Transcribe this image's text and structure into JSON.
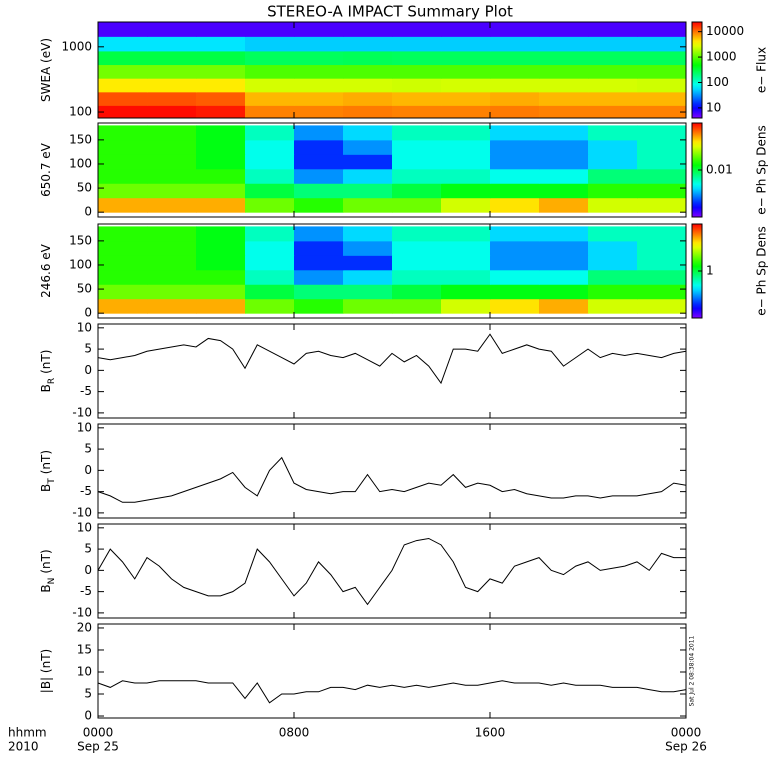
{
  "title": "STEREO-A IMPACT Summary Plot",
  "x_label": [
    "hhmm",
    "2010"
  ],
  "xlim": [
    0,
    24
  ],
  "xticks": [
    {
      "value": 0,
      "label": "0000"
    },
    {
      "value": 8,
      "label": "0800"
    },
    {
      "value": 16,
      "label": "1600"
    },
    {
      "value": 24,
      "label": "0000"
    }
  ],
  "xdates": [
    {
      "value": 0,
      "label": "Sep 25"
    },
    {
      "value": 24,
      "label": "Sep 26"
    }
  ],
  "x": [
    0,
    0.5,
    1,
    1.5,
    2,
    2.5,
    3,
    3.5,
    4,
    4.5,
    5,
    5.5,
    6,
    6.5,
    7,
    7.5,
    8,
    8.5,
    9,
    9.5,
    10,
    10.5,
    11,
    11.5,
    12,
    12.5,
    13,
    13.5,
    14,
    14.5,
    15,
    15.5,
    16,
    16.5,
    17,
    17.5,
    18,
    18.5,
    19,
    19.5,
    20,
    20.5,
    21,
    21.5,
    22,
    22.5,
    23,
    23.5,
    24
  ],
  "timestamp": "Sat Jul  2 08:38:04 2011",
  "chart_data": [
    {
      "type": "heatmap",
      "y_label": "SWEA (eV)",
      "log_y": true,
      "ylim": [
        81,
        2400
      ],
      "yticks": [
        100,
        1000
      ],
      "x": [
        1,
        3,
        5,
        7,
        9,
        11,
        13,
        15,
        17,
        19,
        21,
        23
      ],
      "y": [
        100,
        160,
        260,
        420,
        680,
        1100,
        1900
      ],
      "values": [
        [
          22000,
          22000,
          20000,
          9000,
          9000,
          9500,
          9000,
          9000,
          9500,
          9000,
          9000,
          9000
        ],
        [
          13000,
          13000,
          12000,
          6000,
          6000,
          6500,
          6000,
          6000,
          6500,
          6000,
          6000,
          6000
        ],
        [
          4000,
          4000,
          4000,
          2500,
          2500,
          2500,
          2400,
          2500,
          2500,
          2500,
          2500,
          2400
        ],
        [
          1200,
          1200,
          1200,
          900,
          900,
          900,
          900,
          900,
          900,
          900,
          900,
          900
        ],
        [
          300,
          300,
          300,
          250,
          250,
          260,
          250,
          250,
          250,
          250,
          250,
          250
        ],
        [
          60,
          60,
          60,
          50,
          50,
          50,
          50,
          50,
          50,
          50,
          50,
          50
        ],
        [
          6,
          6,
          6,
          6,
          6,
          6,
          6,
          6,
          6,
          6,
          6,
          6
        ]
      ],
      "colorbar": {
        "label": "e− Flux",
        "log": true,
        "clim": [
          4,
          24000
        ],
        "ticks": [
          10,
          100,
          1000,
          10000
        ]
      }
    },
    {
      "type": "heatmap",
      "y_label": "650.7 eV",
      "log_y": false,
      "ylim": [
        -10,
        185
      ],
      "yticks": [
        0,
        50,
        100,
        150
      ],
      "x": [
        1,
        3,
        5,
        7,
        9,
        11,
        13,
        15,
        17,
        19,
        21,
        23
      ],
      "y": [
        15,
        45,
        75,
        105,
        135,
        165
      ],
      "values": [
        [
          0.05,
          0.05,
          0.05,
          0.02,
          0.015,
          0.02,
          0.02,
          0.03,
          0.04,
          0.05,
          0.03,
          0.03
        ],
        [
          0.02,
          0.02,
          0.02,
          0.01,
          0.008,
          0.008,
          0.01,
          0.012,
          0.012,
          0.012,
          0.015,
          0.015
        ],
        [
          0.015,
          0.015,
          0.015,
          0.006,
          0.003,
          0.004,
          0.006,
          0.006,
          0.005,
          0.005,
          0.008,
          0.008
        ],
        [
          0.015,
          0.015,
          0.012,
          0.005,
          0.002,
          0.002,
          0.005,
          0.005,
          0.003,
          0.003,
          0.004,
          0.006
        ],
        [
          0.015,
          0.015,
          0.012,
          0.005,
          0.002,
          0.003,
          0.005,
          0.005,
          0.003,
          0.003,
          0.004,
          0.006
        ],
        [
          0.015,
          0.015,
          0.012,
          0.006,
          0.003,
          0.004,
          0.006,
          0.006,
          0.004,
          0.004,
          0.006,
          0.006
        ]
      ],
      "colorbar": {
        "label": "e− Ph Sp Dens",
        "log": true,
        "clim": [
          0.001,
          0.1
        ],
        "ticks": [
          0.01
        ]
      }
    },
    {
      "type": "heatmap",
      "y_label": "246.6 eV",
      "log_y": false,
      "ylim": [
        -10,
        185
      ],
      "yticks": [
        0,
        50,
        100,
        150
      ],
      "x": [
        1,
        3,
        5,
        7,
        9,
        11,
        13,
        15,
        17,
        19,
        21,
        23
      ],
      "y": [
        15,
        45,
        75,
        105,
        135,
        165
      ],
      "values": [
        [
          5,
          5,
          5,
          2,
          1.5,
          2,
          2,
          3,
          4,
          5,
          3,
          3
        ],
        [
          2,
          2,
          2,
          1,
          0.8,
          0.8,
          1,
          1.2,
          1.2,
          1.2,
          1.5,
          1.5
        ],
        [
          1.5,
          1.5,
          1.5,
          0.6,
          0.3,
          0.4,
          0.6,
          0.6,
          0.5,
          0.5,
          0.8,
          0.8
        ],
        [
          1.5,
          1.5,
          1.2,
          0.5,
          0.2,
          0.2,
          0.5,
          0.5,
          0.3,
          0.3,
          0.4,
          0.6
        ],
        [
          1.5,
          1.5,
          1.2,
          0.5,
          0.2,
          0.3,
          0.5,
          0.5,
          0.3,
          0.3,
          0.4,
          0.6
        ],
        [
          1.5,
          1.5,
          1.2,
          0.6,
          0.3,
          0.4,
          0.6,
          0.6,
          0.4,
          0.4,
          0.6,
          0.6
        ]
      ],
      "colorbar": {
        "label": "e− Ph Sp Dens",
        "log": true,
        "clim": [
          0.1,
          10
        ],
        "ticks": [
          1
        ]
      }
    },
    {
      "type": "line",
      "y_label": "B",
      "y_label_sub": "R",
      "y_unit": "(nT)",
      "ylim": [
        -11.2,
        10.9
      ],
      "yticks": [
        -10,
        -5,
        0,
        5,
        10
      ],
      "color": "#000000",
      "values": [
        3,
        2.5,
        3,
        3.5,
        4.5,
        5,
        5.5,
        6,
        5.5,
        7.5,
        7,
        5,
        0.5,
        6,
        4.5,
        3,
        1.5,
        4,
        4.5,
        3.5,
        3,
        4,
        2.5,
        1,
        4,
        2,
        3.5,
        1,
        -3,
        5,
        5,
        4.5,
        8.5,
        4,
        5,
        6,
        5,
        4.5,
        1,
        3,
        5,
        3,
        4,
        3.5,
        4,
        3.5,
        3,
        4,
        4.5
      ]
    },
    {
      "type": "line",
      "y_label": "B",
      "y_label_sub": "T",
      "y_unit": "(nT)",
      "ylim": [
        -11.2,
        10.9
      ],
      "yticks": [
        -10,
        -5,
        0,
        5,
        10
      ],
      "color": "#000000",
      "values": [
        -5,
        -6,
        -7.5,
        -7.5,
        -7,
        -6.5,
        -6,
        -5,
        -4,
        -3,
        -2,
        -0.5,
        -4,
        -6,
        0,
        3,
        -3,
        -4.5,
        -5,
        -5.5,
        -5,
        -5,
        -1,
        -5,
        -4.5,
        -5,
        -4,
        -3,
        -3.5,
        -1,
        -4,
        -3,
        -3.5,
        -5,
        -4.5,
        -5.5,
        -6,
        -6.5,
        -6.5,
        -6,
        -6,
        -6.5,
        -6,
        -6,
        -6,
        -5.5,
        -5,
        -3,
        -3.5
      ]
    },
    {
      "type": "line",
      "y_label": "B",
      "y_label_sub": "N",
      "y_unit": "(nT)",
      "ylim": [
        -11.2,
        10.9
      ],
      "yticks": [
        -10,
        -5,
        0,
        5,
        10
      ],
      "color": "#000000",
      "values": [
        0,
        5,
        2,
        -2,
        3,
        1,
        -2,
        -4,
        -5,
        -6,
        -6,
        -5,
        -3,
        5,
        2,
        -2,
        -6,
        -3,
        2,
        -1,
        -5,
        -4,
        -8,
        -4,
        0,
        6,
        7,
        7.5,
        6,
        2,
        -4,
        -5,
        -2,
        -3,
        1,
        2,
        3,
        0,
        -1,
        1,
        2,
        0,
        0.5,
        1,
        2,
        0,
        4,
        3,
        3
      ]
    },
    {
      "type": "line",
      "y_label": "|B| (nT)",
      "ylim": [
        -0.45,
        20.9
      ],
      "yticks": [
        0,
        5,
        10,
        15,
        20
      ],
      "color": "#000000",
      "values": [
        7.5,
        6.5,
        8,
        7.5,
        7.5,
        8,
        8,
        8,
        8,
        7.5,
        7.5,
        7.5,
        4,
        7.5,
        3,
        5,
        5,
        5.5,
        5.5,
        6.5,
        6.5,
        6,
        7,
        6.5,
        7,
        6.5,
        7,
        6.5,
        7,
        7.5,
        7,
        7,
        7.5,
        8,
        7.5,
        7.5,
        7.5,
        7,
        7.5,
        7,
        7,
        7,
        6.5,
        6.5,
        6.5,
        6,
        5.5,
        5.5,
        6
      ]
    }
  ]
}
